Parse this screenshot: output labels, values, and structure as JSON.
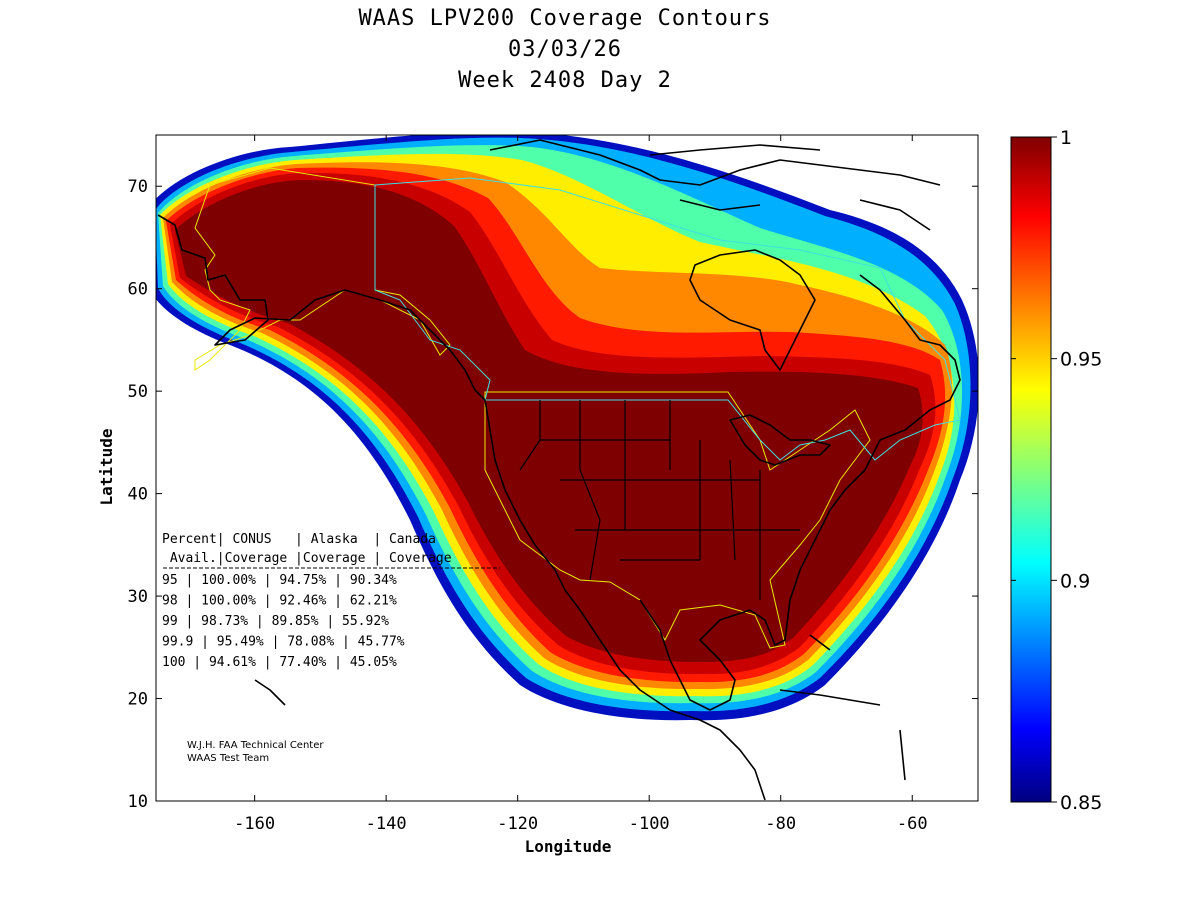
{
  "chart_data": {
    "type": "heatmap",
    "title": "WAAS LPV200 Coverage Contours",
    "subtitle_date": "03/03/26",
    "subtitle_week": "Week 2408 Day 2",
    "xlabel": "Longitude",
    "ylabel": "Latitude",
    "xlim": [
      -175,
      -50
    ],
    "ylim": [
      10,
      75
    ],
    "x_ticks": [
      "-160",
      "-140",
      "-120",
      "-100",
      "-80",
      "-60"
    ],
    "y_ticks": [
      "10",
      "20",
      "30",
      "40",
      "50",
      "60",
      "70"
    ],
    "colorbar": {
      "range": [
        0.85,
        1
      ],
      "ticks": [
        "0.85",
        "0.9",
        "0.95",
        "1"
      ],
      "colormap": "jet"
    },
    "availability_table": {
      "header_line1": "Percent| CONUS   | Alaska  | Canada",
      "header_line2": " Avail.|Coverage |Coverage | Coverage",
      "rows": [
        {
          "percent": "95",
          "conus": "100.00%",
          "alaska": "94.75%",
          "canada": "90.34%"
        },
        {
          "percent": "98",
          "conus": "100.00%",
          "alaska": "92.46%",
          "canada": "62.21%"
        },
        {
          "percent": "99",
          "conus": "98.73%",
          "alaska": "89.85%",
          "canada": "55.92%"
        },
        {
          "percent": "99.9",
          "conus": "95.49%",
          "alaska": "78.08%",
          "canada": "45.77%"
        },
        {
          "percent": "100",
          "conus": "94.61%",
          "alaska": "77.40%",
          "canada": "45.05%"
        }
      ]
    },
    "credits": [
      "W.J.H. FAA Technical Center",
      "WAAS Test Team"
    ],
    "grid": false
  }
}
